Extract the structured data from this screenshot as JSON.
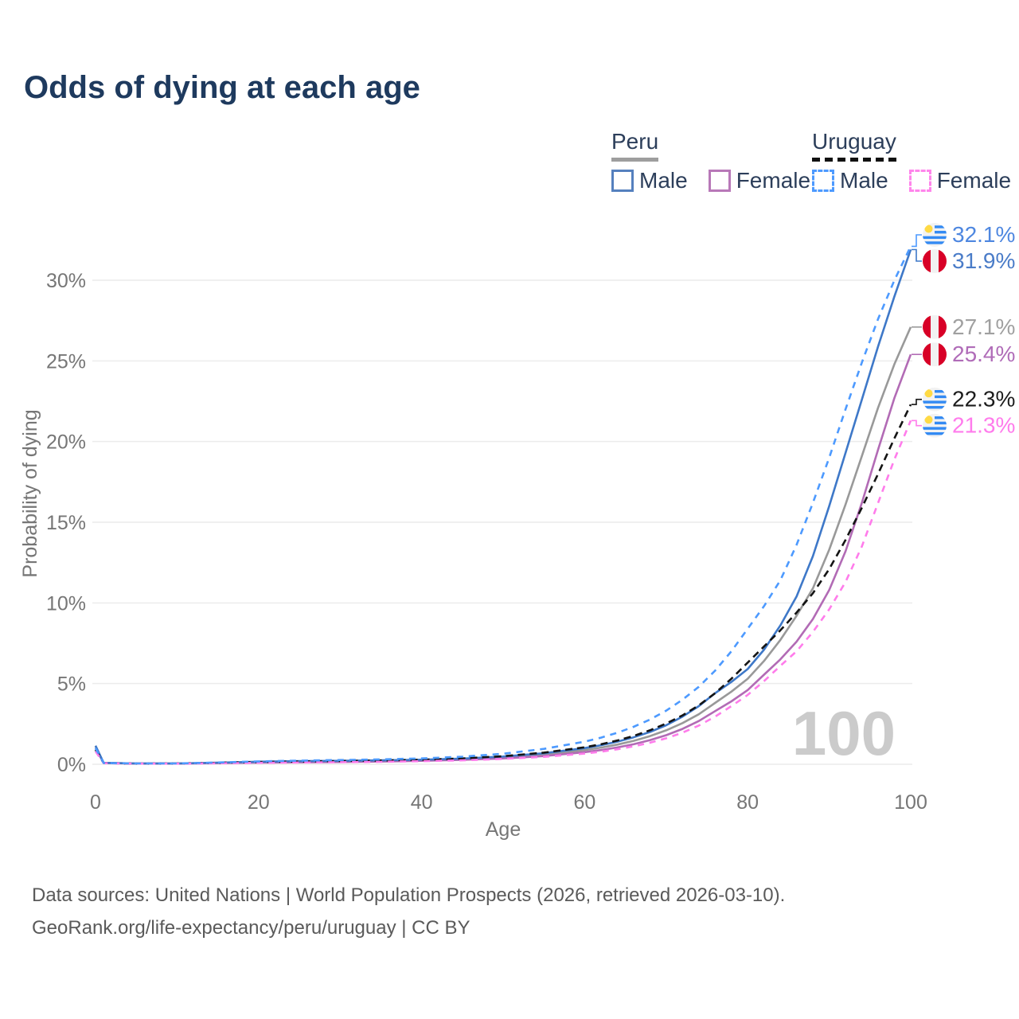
{
  "title": "Odds of dying at each age",
  "legend": {
    "groups": [
      {
        "label": "Peru",
        "line_style": "solid",
        "line_color": "#9E9E9E",
        "items": [
          {
            "label": "Male",
            "color": "#5580BE"
          },
          {
            "label": "Female",
            "color": "#B878B8"
          }
        ]
      },
      {
        "label": "Uruguay",
        "line_style": "dashed",
        "line_color": "#111111",
        "items": [
          {
            "label": "Male",
            "color": "#4D9AFF"
          },
          {
            "label": "Female",
            "color": "#FF85EB"
          }
        ]
      }
    ]
  },
  "chart_data": {
    "type": "line",
    "xlabel": "Age",
    "ylabel": "Probability of dying",
    "watermark": "100",
    "xlim": [
      0,
      100
    ],
    "ylim": [
      0,
      33
    ],
    "grid": "horizontal",
    "x_ticks": [
      {
        "v": 0,
        "label": "0"
      },
      {
        "v": 20,
        "label": "20"
      },
      {
        "v": 40,
        "label": "40"
      },
      {
        "v": 60,
        "label": "60"
      },
      {
        "v": 80,
        "label": "80"
      },
      {
        "v": 100,
        "label": "100"
      }
    ],
    "y_ticks": [
      {
        "v": 0,
        "label": "0%"
      },
      {
        "v": 5,
        "label": "5%"
      },
      {
        "v": 10,
        "label": "10%"
      },
      {
        "v": 15,
        "label": "15%"
      },
      {
        "v": 20,
        "label": "20%"
      },
      {
        "v": 25,
        "label": "25%"
      },
      {
        "v": 30,
        "label": "30%"
      }
    ],
    "x": [
      0,
      1,
      5,
      10,
      15,
      20,
      25,
      30,
      35,
      40,
      45,
      50,
      55,
      60,
      62,
      64,
      66,
      68,
      70,
      72,
      74,
      76,
      78,
      80,
      82,
      84,
      86,
      88,
      90,
      92,
      94,
      96,
      98,
      100
    ],
    "series": [
      {
        "name": "Peru",
        "country": "peru",
        "dash": "solid",
        "color": "#999999",
        "label_color": "#A0A0A0",
        "end_label": "27.1%",
        "values": [
          1.1,
          0.085,
          0.05,
          0.05,
          0.09,
          0.13,
          0.16,
          0.18,
          0.21,
          0.25,
          0.31,
          0.42,
          0.6,
          0.88,
          1.03,
          1.22,
          1.45,
          1.74,
          2.1,
          2.55,
          3.1,
          3.8,
          4.5,
          5.3,
          6.4,
          7.7,
          9.2,
          10.9,
          13.3,
          16.1,
          19.1,
          22.1,
          24.8,
          27.1
        ]
      },
      {
        "name": "Peru Female",
        "country": "peru",
        "dash": "solid",
        "color": "#B26BB5",
        "label_color": "#B06CB8",
        "end_label": "25.4%",
        "values": [
          1.0,
          0.08,
          0.04,
          0.04,
          0.07,
          0.1,
          0.12,
          0.14,
          0.17,
          0.21,
          0.27,
          0.36,
          0.51,
          0.75,
          0.88,
          1.04,
          1.24,
          1.49,
          1.8,
          2.19,
          2.68,
          3.29,
          3.9,
          4.6,
          5.55,
          6.5,
          7.6,
          9.0,
          10.8,
          13.2,
          16.2,
          19.5,
          22.7,
          25.4
        ]
      },
      {
        "name": "Peru Male",
        "country": "peru",
        "dash": "solid",
        "color": "#3E78C8",
        "label_color": "#4A7CC8",
        "end_label": "31.9%",
        "values": [
          1.15,
          0.09,
          0.05,
          0.05,
          0.1,
          0.16,
          0.19,
          0.21,
          0.24,
          0.28,
          0.35,
          0.48,
          0.68,
          1.0,
          1.18,
          1.4,
          1.67,
          2.0,
          2.42,
          2.95,
          3.6,
          4.4,
          5.1,
          5.9,
          7.1,
          8.6,
          10.4,
          12.9,
          16.0,
          19.3,
          22.6,
          25.9,
          29.0,
          31.9
        ]
      },
      {
        "name": "Uruguay",
        "country": "uruguay",
        "dash": "dashed",
        "color": "#141414",
        "label_color": "#1C1C1C",
        "end_label": "22.3%",
        "values": [
          0.9,
          0.075,
          0.04,
          0.05,
          0.09,
          0.14,
          0.17,
          0.2,
          0.23,
          0.28,
          0.36,
          0.5,
          0.72,
          1.05,
          1.24,
          1.47,
          1.75,
          2.1,
          2.52,
          3.03,
          3.65,
          4.4,
          5.3,
          6.3,
          7.3,
          8.3,
          9.4,
          10.6,
          12.1,
          13.9,
          15.9,
          18.0,
          20.2,
          22.3
        ]
      },
      {
        "name": "Uruguay Female",
        "country": "uruguay",
        "dash": "dashed",
        "color": "#FF7CEB",
        "label_color": "#FF7BEC",
        "end_label": "21.3%",
        "values": [
          0.8,
          0.07,
          0.04,
          0.04,
          0.06,
          0.09,
          0.11,
          0.13,
          0.15,
          0.19,
          0.24,
          0.33,
          0.46,
          0.66,
          0.78,
          0.93,
          1.11,
          1.33,
          1.61,
          1.96,
          2.4,
          2.95,
          3.6,
          4.3,
          5.15,
          6.1,
          7.0,
          8.2,
          9.6,
          11.3,
          13.5,
          16.2,
          18.9,
          21.3
        ]
      },
      {
        "name": "Uruguay Male",
        "country": "uruguay",
        "dash": "dashed",
        "color": "#4D9AFF",
        "label_color": "#4E87E0",
        "end_label": "32.1%",
        "values": [
          1.0,
          0.08,
          0.05,
          0.05,
          0.11,
          0.18,
          0.22,
          0.26,
          0.3,
          0.36,
          0.47,
          0.65,
          0.95,
          1.4,
          1.65,
          1.95,
          2.32,
          2.77,
          3.32,
          4.0,
          4.8,
          5.8,
          7.0,
          8.4,
          9.8,
          11.4,
          13.6,
          16.2,
          19.0,
          22.0,
          24.9,
          27.6,
          30.0,
          32.1
        ]
      }
    ],
    "flag_colors": {
      "uruguay_blue": "#338AF3",
      "uruguay_sun": "#FFDA44",
      "peru_red": "#D80027",
      "flag_bg": "#F2F2F2"
    },
    "style": {
      "grid_color": "#ECECEC",
      "tick_color": "#767676",
      "watermark_color": "#CBCBCB"
    }
  },
  "footer": {
    "line1": "Data sources: United Nations | World Population Prospects (2026, retrieved 2026-03-10).",
    "line2": "GeoRank.org/life-expectancy/peru/uruguay | CC BY"
  }
}
